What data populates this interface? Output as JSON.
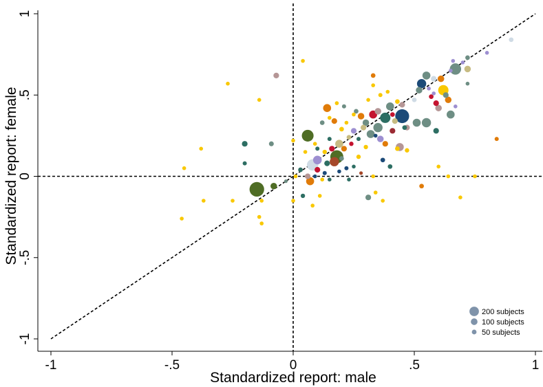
{
  "chart_data": {
    "type": "scatter",
    "title": "",
    "xlabel": "Standardized report: male",
    "ylabel": "Standardized report: female",
    "xlim": [
      -1,
      1
    ],
    "ylim": [
      -1,
      1
    ],
    "x_ticks": [
      -1,
      -0.5,
      0,
      0.5,
      1
    ],
    "x_tick_labels": [
      "-1",
      "-.5",
      "0",
      ".5",
      "1"
    ],
    "y_ticks": [
      -1,
      -0.5,
      0,
      0.5,
      1
    ],
    "y_tick_labels": [
      "-1",
      "-.5",
      "0",
      ".5",
      "1"
    ],
    "reference_lines": [
      "x = 0 (dashed)",
      "y = 0 (dashed)",
      "y = x (dashed)"
    ],
    "grid": false,
    "size_encoding": "number of subjects",
    "legend": {
      "position": "bottom-right",
      "entries": [
        {
          "label": "200 subjects",
          "subjects": 200
        },
        {
          "label": "100 subjects",
          "subjects": 100
        },
        {
          "label": "50 subjects",
          "subjects": 50
        }
      ],
      "color": "#7f93aa"
    },
    "colors": {
      "yellow": "#f9c800",
      "olive": "#4f6d25",
      "teal": "#2d6e63",
      "grayteal": "#6e8e84",
      "navy": "#1c4a78",
      "orange": "#e07b09",
      "crimson": "#c4132f",
      "lavender": "#9d8fd1",
      "tan": "#c7bb82",
      "mauve": "#b59696",
      "paleblue": "#cfdbe5",
      "rust": "#a5482a",
      "darkred": "#9b2b34"
    },
    "points": [
      {
        "x": -0.46,
        "y": -0.26,
        "subjects": 14,
        "color": "yellow"
      },
      {
        "x": -0.45,
        "y": 0.05,
        "subjects": 14,
        "color": "yellow"
      },
      {
        "x": -0.38,
        "y": 0.17,
        "subjects": 14,
        "color": "yellow"
      },
      {
        "x": -0.37,
        "y": -0.15,
        "subjects": 14,
        "color": "yellow"
      },
      {
        "x": -0.27,
        "y": 0.57,
        "subjects": 14,
        "color": "yellow"
      },
      {
        "x": -0.25,
        "y": -0.15,
        "subjects": 14,
        "color": "yellow"
      },
      {
        "x": -0.2,
        "y": 0.2,
        "subjects": 30,
        "color": "teal"
      },
      {
        "x": -0.2,
        "y": 0.08,
        "subjects": 16,
        "color": "teal"
      },
      {
        "x": -0.15,
        "y": -0.08,
        "subjects": 200,
        "color": "olive"
      },
      {
        "x": -0.14,
        "y": 0.47,
        "subjects": 14,
        "color": "yellow"
      },
      {
        "x": -0.14,
        "y": -0.25,
        "subjects": 14,
        "color": "yellow"
      },
      {
        "x": -0.13,
        "y": -0.29,
        "subjects": 14,
        "color": "yellow"
      },
      {
        "x": -0.13,
        "y": -0.15,
        "subjects": 14,
        "color": "yellow"
      },
      {
        "x": -0.09,
        "y": 0.2,
        "subjects": 22,
        "color": "grayteal"
      },
      {
        "x": -0.08,
        "y": -0.06,
        "subjects": 40,
        "color": "olive"
      },
      {
        "x": -0.07,
        "y": 0.62,
        "subjects": 30,
        "color": "mauve"
      },
      {
        "x": -0.03,
        "y": -0.03,
        "subjects": 12,
        "color": "grayteal"
      },
      {
        "x": 0.0,
        "y": 0.22,
        "subjects": 14,
        "color": "yellow"
      },
      {
        "x": 0.0,
        "y": -0.15,
        "subjects": 14,
        "color": "yellow"
      },
      {
        "x": 0.01,
        "y": 0.0,
        "subjects": 14,
        "color": "yellow"
      },
      {
        "x": 0.03,
        "y": 0.04,
        "subjects": 20,
        "color": "teal"
      },
      {
        "x": 0.04,
        "y": -0.12,
        "subjects": 18,
        "color": "teal"
      },
      {
        "x": 0.04,
        "y": 0.71,
        "subjects": 14,
        "color": "yellow"
      },
      {
        "x": 0.05,
        "y": 0.15,
        "subjects": 14,
        "color": "yellow"
      },
      {
        "x": 0.06,
        "y": 0.25,
        "subjects": 130,
        "color": "olive"
      },
      {
        "x": 0.06,
        "y": 0.0,
        "subjects": 30,
        "color": "mauve"
      },
      {
        "x": 0.07,
        "y": -0.03,
        "subjects": 60,
        "color": "orange"
      },
      {
        "x": 0.08,
        "y": 0.07,
        "subjects": 120,
        "color": "paleblue"
      },
      {
        "x": 0.08,
        "y": -0.18,
        "subjects": 14,
        "color": "yellow"
      },
      {
        "x": 0.09,
        "y": 0.2,
        "subjects": 14,
        "color": "yellow"
      },
      {
        "x": 0.09,
        "y": 0.0,
        "subjects": 14,
        "color": "navy"
      },
      {
        "x": 0.1,
        "y": 0.1,
        "subjects": 70,
        "color": "lavender"
      },
      {
        "x": 0.1,
        "y": 0.04,
        "subjects": 30,
        "color": "crimson"
      },
      {
        "x": 0.1,
        "y": 0.17,
        "subjects": 16,
        "color": "teal"
      },
      {
        "x": 0.11,
        "y": -0.12,
        "subjects": 14,
        "color": "yellow"
      },
      {
        "x": 0.12,
        "y": 0.33,
        "subjects": 20,
        "color": "grayteal"
      },
      {
        "x": 0.12,
        "y": -0.02,
        "subjects": 14,
        "color": "yellow"
      },
      {
        "x": 0.13,
        "y": 0.15,
        "subjects": 18,
        "color": "yellow"
      },
      {
        "x": 0.13,
        "y": 0.02,
        "subjects": 16,
        "color": "navy"
      },
      {
        "x": 0.14,
        "y": 0.42,
        "subjects": 60,
        "color": "orange"
      },
      {
        "x": 0.14,
        "y": 0.08,
        "subjects": 30,
        "color": "teal"
      },
      {
        "x": 0.15,
        "y": 0.36,
        "subjects": 14,
        "color": "yellow"
      },
      {
        "x": 0.15,
        "y": 0.23,
        "subjects": 16,
        "color": "teal"
      },
      {
        "x": 0.15,
        "y": -0.02,
        "subjects": 14,
        "color": "teal"
      },
      {
        "x": 0.16,
        "y": 0.17,
        "subjects": 30,
        "color": "crimson"
      },
      {
        "x": 0.17,
        "y": 0.09,
        "subjects": 80,
        "color": "rust"
      },
      {
        "x": 0.17,
        "y": 0.34,
        "subjects": 30,
        "color": "orange"
      },
      {
        "x": 0.18,
        "y": 0.45,
        "subjects": 14,
        "color": "yellow"
      },
      {
        "x": 0.18,
        "y": 0.12,
        "subjects": 160,
        "color": "olive"
      },
      {
        "x": 0.19,
        "y": 0.2,
        "subjects": 60,
        "color": "tan"
      },
      {
        "x": 0.19,
        "y": 0.03,
        "subjects": 14,
        "color": "navy"
      },
      {
        "x": 0.2,
        "y": 0.29,
        "subjects": 20,
        "color": "yellow"
      },
      {
        "x": 0.2,
        "y": 0.11,
        "subjects": 20,
        "color": "grayteal"
      },
      {
        "x": 0.21,
        "y": 0.43,
        "subjects": 16,
        "color": "grayteal"
      },
      {
        "x": 0.21,
        "y": 0.17,
        "subjects": 30,
        "color": "orange"
      },
      {
        "x": 0.22,
        "y": 0.33,
        "subjects": 14,
        "color": "yellow"
      },
      {
        "x": 0.22,
        "y": 0.05,
        "subjects": 16,
        "color": "navy"
      },
      {
        "x": 0.23,
        "y": 0.24,
        "subjects": 20,
        "color": "tan"
      },
      {
        "x": 0.23,
        "y": -0.02,
        "subjects": 14,
        "color": "teal"
      },
      {
        "x": 0.24,
        "y": 0.2,
        "subjects": 18,
        "color": "crimson"
      },
      {
        "x": 0.25,
        "y": 0.38,
        "subjects": 14,
        "color": "yellow"
      },
      {
        "x": 0.25,
        "y": 0.28,
        "subjects": 30,
        "color": "lavender"
      },
      {
        "x": 0.25,
        "y": 0.06,
        "subjects": 14,
        "color": "teal"
      },
      {
        "x": 0.26,
        "y": 0.4,
        "subjects": 20,
        "color": "grayteal"
      },
      {
        "x": 0.27,
        "y": 0.23,
        "subjects": 16,
        "color": "teal"
      },
      {
        "x": 0.27,
        "y": 0.12,
        "subjects": 18,
        "color": "yellow"
      },
      {
        "x": 0.28,
        "y": 0.37,
        "subjects": 40,
        "color": "orange"
      },
      {
        "x": 0.28,
        "y": 0.02,
        "subjects": 12,
        "color": "rust"
      },
      {
        "x": 0.29,
        "y": 0.3,
        "subjects": 30,
        "color": "tan"
      },
      {
        "x": 0.3,
        "y": 0.33,
        "subjects": 40,
        "color": "grayteal"
      },
      {
        "x": 0.3,
        "y": 0.18,
        "subjects": 18,
        "color": "yellow"
      },
      {
        "x": 0.31,
        "y": 0.47,
        "subjects": 14,
        "color": "yellow"
      },
      {
        "x": 0.31,
        "y": -0.13,
        "subjects": 30,
        "color": "grayteal"
      },
      {
        "x": 0.32,
        "y": 0.26,
        "subjects": 60,
        "color": "grayteal"
      },
      {
        "x": 0.33,
        "y": 0.38,
        "subjects": 60,
        "color": "crimson"
      },
      {
        "x": 0.33,
        "y": 0.56,
        "subjects": 14,
        "color": "yellow"
      },
      {
        "x": 0.33,
        "y": 0.62,
        "subjects": 20,
        "color": "orange"
      },
      {
        "x": 0.33,
        "y": 0.0,
        "subjects": 14,
        "color": "yellow"
      },
      {
        "x": 0.34,
        "y": -0.1,
        "subjects": 14,
        "color": "yellow"
      },
      {
        "x": 0.34,
        "y": 0.25,
        "subjects": 14,
        "color": "navy"
      },
      {
        "x": 0.35,
        "y": 0.3,
        "subjects": 80,
        "color": "grayteal"
      },
      {
        "x": 0.35,
        "y": 0.4,
        "subjects": 40,
        "color": "mauve"
      },
      {
        "x": 0.36,
        "y": 0.23,
        "subjects": 40,
        "color": "lavender"
      },
      {
        "x": 0.36,
        "y": 0.5,
        "subjects": 16,
        "color": "yellow"
      },
      {
        "x": 0.37,
        "y": 0.1,
        "subjects": 20,
        "color": "navy"
      },
      {
        "x": 0.37,
        "y": -0.15,
        "subjects": 14,
        "color": "yellow"
      },
      {
        "x": 0.38,
        "y": 0.36,
        "subjects": 100,
        "color": "teal"
      },
      {
        "x": 0.38,
        "y": 0.2,
        "subjects": 30,
        "color": "orange"
      },
      {
        "x": 0.39,
        "y": 0.52,
        "subjects": 14,
        "color": "yellow"
      },
      {
        "x": 0.4,
        "y": 0.43,
        "subjects": 60,
        "color": "grayteal"
      },
      {
        "x": 0.4,
        "y": 0.06,
        "subjects": 20,
        "color": "teal"
      },
      {
        "x": 0.41,
        "y": 0.28,
        "subjects": 30,
        "color": "darkred"
      },
      {
        "x": 0.41,
        "y": 0.38,
        "subjects": 20,
        "color": "crimson"
      },
      {
        "x": 0.42,
        "y": 0.34,
        "subjects": 30,
        "color": "tan"
      },
      {
        "x": 0.43,
        "y": 0.46,
        "subjects": 20,
        "color": "yellow"
      },
      {
        "x": 0.43,
        "y": 0.17,
        "subjects": 20,
        "color": "yellow"
      },
      {
        "x": 0.44,
        "y": 0.18,
        "subjects": 60,
        "color": "mauve"
      },
      {
        "x": 0.45,
        "y": 0.37,
        "subjects": 180,
        "color": "navy"
      },
      {
        "x": 0.45,
        "y": 0.44,
        "subjects": 30,
        "color": "mauve"
      },
      {
        "x": 0.46,
        "y": 0.3,
        "subjects": 20,
        "color": "teal"
      },
      {
        "x": 0.47,
        "y": 0.16,
        "subjects": 18,
        "color": "yellow"
      },
      {
        "x": 0.47,
        "y": 0.3,
        "subjects": 30,
        "color": "mauve"
      },
      {
        "x": 0.5,
        "y": 0.47,
        "subjects": 20,
        "color": "paleblue"
      },
      {
        "x": 0.51,
        "y": 0.33,
        "subjects": 60,
        "color": "grayteal"
      },
      {
        "x": 0.52,
        "y": 0.53,
        "subjects": 40,
        "color": "grayteal"
      },
      {
        "x": 0.53,
        "y": 0.57,
        "subjects": 80,
        "color": "navy"
      },
      {
        "x": 0.53,
        "y": -0.06,
        "subjects": 20,
        "color": "orange"
      },
      {
        "x": 0.55,
        "y": 0.62,
        "subjects": 60,
        "color": "grayteal"
      },
      {
        "x": 0.55,
        "y": 0.33,
        "subjects": 80,
        "color": "grayteal"
      },
      {
        "x": 0.56,
        "y": 0.54,
        "subjects": 14,
        "color": "lavender"
      },
      {
        "x": 0.57,
        "y": 0.49,
        "subjects": 20,
        "color": "crimson"
      },
      {
        "x": 0.58,
        "y": 0.6,
        "subjects": 30,
        "color": "paleblue"
      },
      {
        "x": 0.58,
        "y": 0.51,
        "subjects": 14,
        "color": "lavender"
      },
      {
        "x": 0.59,
        "y": 0.45,
        "subjects": 30,
        "color": "crimson"
      },
      {
        "x": 0.59,
        "y": 0.28,
        "subjects": 30,
        "color": "teal"
      },
      {
        "x": 0.6,
        "y": 0.42,
        "subjects": 40,
        "color": "mauve"
      },
      {
        "x": 0.6,
        "y": 0.06,
        "subjects": 14,
        "color": "yellow"
      },
      {
        "x": 0.61,
        "y": 0.6,
        "subjects": 40,
        "color": "orange"
      },
      {
        "x": 0.62,
        "y": 0.53,
        "subjects": 100,
        "color": "yellow"
      },
      {
        "x": 0.63,
        "y": 0.5,
        "subjects": 30,
        "color": "grayteal"
      },
      {
        "x": 0.64,
        "y": 0.47,
        "subjects": 40,
        "color": "orange"
      },
      {
        "x": 0.64,
        "y": 0.0,
        "subjects": 14,
        "color": "yellow"
      },
      {
        "x": 0.65,
        "y": 0.65,
        "subjects": 14,
        "color": "lavender"
      },
      {
        "x": 0.65,
        "y": 0.38,
        "subjects": 60,
        "color": "grayteal"
      },
      {
        "x": 0.66,
        "y": 0.71,
        "subjects": 14,
        "color": "lavender"
      },
      {
        "x": 0.67,
        "y": 0.66,
        "subjects": 120,
        "color": "grayteal"
      },
      {
        "x": 0.67,
        "y": 0.43,
        "subjects": 14,
        "color": "lavender"
      },
      {
        "x": 0.69,
        "y": -0.13,
        "subjects": 14,
        "color": "yellow"
      },
      {
        "x": 0.7,
        "y": 0.7,
        "subjects": 14,
        "color": "lavender"
      },
      {
        "x": 0.72,
        "y": 0.73,
        "subjects": 20,
        "color": "grayteal"
      },
      {
        "x": 0.72,
        "y": 0.66,
        "subjects": 40,
        "color": "tan"
      },
      {
        "x": 0.72,
        "y": 0.57,
        "subjects": 14,
        "color": "grayteal"
      },
      {
        "x": 0.75,
        "y": 0.0,
        "subjects": 14,
        "color": "yellow"
      },
      {
        "x": 0.8,
        "y": 0.76,
        "subjects": 14,
        "color": "lavender"
      },
      {
        "x": 0.84,
        "y": 0.23,
        "subjects": 16,
        "color": "orange"
      },
      {
        "x": 0.9,
        "y": 0.84,
        "subjects": 20,
        "color": "paleblue"
      }
    ]
  }
}
